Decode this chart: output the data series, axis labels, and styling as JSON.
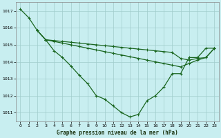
{
  "background_color": "#c8eef0",
  "grid_color": "#a0cccc",
  "line_color": "#1a6620",
  "xlabel": "Graphe pression niveau de la mer (hPa)",
  "ylim": [
    1010.5,
    1017.5
  ],
  "xlim": [
    -0.5,
    23.5
  ],
  "yticks": [
    1011,
    1012,
    1013,
    1014,
    1015,
    1016,
    1017
  ],
  "xticks": [
    0,
    1,
    2,
    3,
    4,
    5,
    6,
    7,
    8,
    9,
    10,
    11,
    12,
    13,
    14,
    15,
    16,
    17,
    18,
    19,
    20,
    21,
    22,
    23
  ],
  "line1_x": [
    0,
    1,
    2,
    3,
    4,
    5,
    6,
    7,
    8,
    9,
    10,
    11,
    12,
    13,
    14,
    15,
    16,
    17,
    18,
    19,
    20,
    21,
    22,
    23
  ],
  "line1_y": [
    1017.1,
    1016.6,
    1015.85,
    1015.3,
    1014.65,
    1014.25,
    1013.75,
    1013.2,
    1012.7,
    1012.0,
    1011.8,
    1011.4,
    1011.0,
    1010.75,
    1010.9,
    1011.7,
    1012.0,
    1012.5,
    1013.3,
    1013.3,
    1014.25,
    1014.25,
    1014.8,
    1014.8
  ],
  "line2_x": [
    2,
    3,
    4,
    5,
    6,
    7,
    8,
    9,
    10,
    11,
    12,
    13,
    14,
    15,
    16,
    17,
    18,
    19,
    20,
    21,
    22,
    23
  ],
  "line2_y": [
    1015.85,
    1015.3,
    1015.25,
    1015.2,
    1015.15,
    1015.1,
    1015.05,
    1015.0,
    1014.95,
    1014.9,
    1014.85,
    1014.8,
    1014.75,
    1014.7,
    1014.65,
    1014.6,
    1014.55,
    1014.2,
    1014.1,
    1014.2,
    1014.25,
    1014.8
  ],
  "line3_x": [
    2,
    3,
    4,
    5,
    6,
    7,
    8,
    9,
    10,
    11,
    12,
    13,
    14,
    15,
    16,
    17,
    18,
    19,
    20,
    21,
    22,
    23
  ],
  "line3_y": [
    1015.85,
    1015.3,
    1015.2,
    1015.1,
    1015.0,
    1014.9,
    1014.8,
    1014.7,
    1014.6,
    1014.5,
    1014.4,
    1014.3,
    1014.2,
    1014.1,
    1014.0,
    1013.9,
    1013.8,
    1013.7,
    1013.9,
    1014.1,
    1014.25,
    1014.8
  ]
}
